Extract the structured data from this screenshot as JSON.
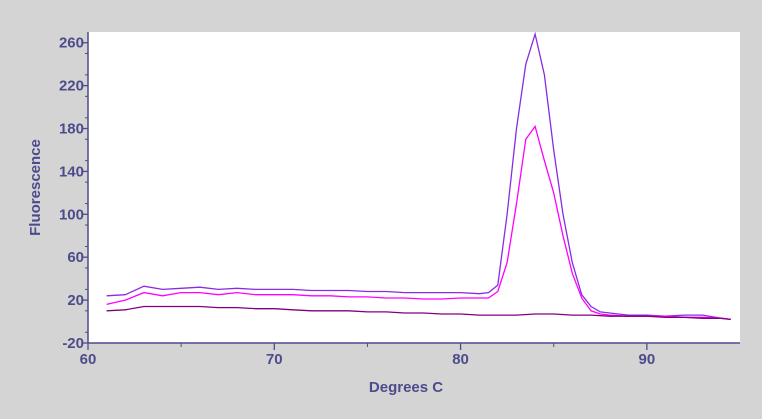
{
  "chart_data": {
    "type": "line",
    "title": "",
    "xlabel": "Degrees C",
    "ylabel": "Fluorescence",
    "xlim": [
      60,
      95
    ],
    "ylim": [
      -20,
      270
    ],
    "x_ticks": [
      60,
      70,
      80,
      90
    ],
    "x_tick_labels": [
      "60",
      "70",
      "80",
      "90"
    ],
    "y_ticks": [
      -20,
      20,
      60,
      100,
      140,
      180,
      220,
      260
    ],
    "y_tick_labels": [
      "-20",
      "20",
      "60",
      "100",
      "140",
      "180",
      "220",
      "260"
    ],
    "grid": false,
    "legend": "none",
    "colors": {
      "frame_bg": "#d4d4d4",
      "plot_bg": "#ffffff",
      "axis": "#4c4c8c",
      "label": "#4c4c8c"
    },
    "series": [
      {
        "color": "#8a2be2",
        "x": [
          61,
          62,
          63,
          64,
          65,
          66,
          67,
          68,
          69,
          70,
          71,
          72,
          73,
          74,
          75,
          76,
          77,
          78,
          79,
          80,
          81,
          81.5,
          82,
          82.5,
          83,
          83.5,
          84,
          84.5,
          85,
          85.5,
          86,
          86.5,
          87,
          87.5,
          88,
          89,
          90,
          91,
          92,
          93,
          94,
          94.5
        ],
        "y": [
          24,
          25,
          33,
          30,
          31,
          32,
          30,
          31,
          30,
          30,
          30,
          29,
          29,
          29,
          28,
          28,
          27,
          27,
          27,
          27,
          26,
          27,
          34,
          100,
          180,
          240,
          268,
          230,
          160,
          100,
          55,
          25,
          14,
          9,
          8,
          6,
          6,
          5,
          6,
          6,
          3,
          2
        ]
      },
      {
        "color": "#ff00ff",
        "x": [
          61,
          62,
          63,
          64,
          65,
          66,
          67,
          68,
          69,
          70,
          71,
          72,
          73,
          74,
          75,
          76,
          77,
          78,
          79,
          80,
          81,
          81.5,
          82,
          82.5,
          83,
          83.5,
          84,
          84.5,
          85,
          85.5,
          86,
          86.5,
          87,
          87.5,
          88,
          89,
          90,
          91,
          92,
          93,
          94,
          94.5
        ],
        "y": [
          16,
          20,
          27,
          24,
          27,
          27,
          25,
          27,
          25,
          25,
          25,
          24,
          24,
          23,
          23,
          22,
          22,
          21,
          21,
          22,
          22,
          22,
          28,
          55,
          110,
          170,
          182,
          150,
          120,
          80,
          45,
          22,
          10,
          7,
          6,
          5,
          5,
          5,
          4,
          4,
          3,
          2
        ]
      },
      {
        "color": "#800080",
        "x": [
          61,
          62,
          63,
          64,
          65,
          66,
          67,
          68,
          69,
          70,
          71,
          72,
          73,
          74,
          75,
          76,
          77,
          78,
          79,
          80,
          81,
          82,
          83,
          84,
          85,
          86,
          87,
          88,
          89,
          90,
          91,
          92,
          93,
          94,
          94.5
        ],
        "y": [
          10,
          11,
          14,
          14,
          14,
          14,
          13,
          13,
          12,
          12,
          11,
          10,
          10,
          10,
          9,
          9,
          8,
          8,
          7,
          7,
          6,
          6,
          6,
          7,
          7,
          6,
          6,
          5,
          5,
          5,
          4,
          4,
          3,
          3,
          2
        ]
      }
    ]
  }
}
